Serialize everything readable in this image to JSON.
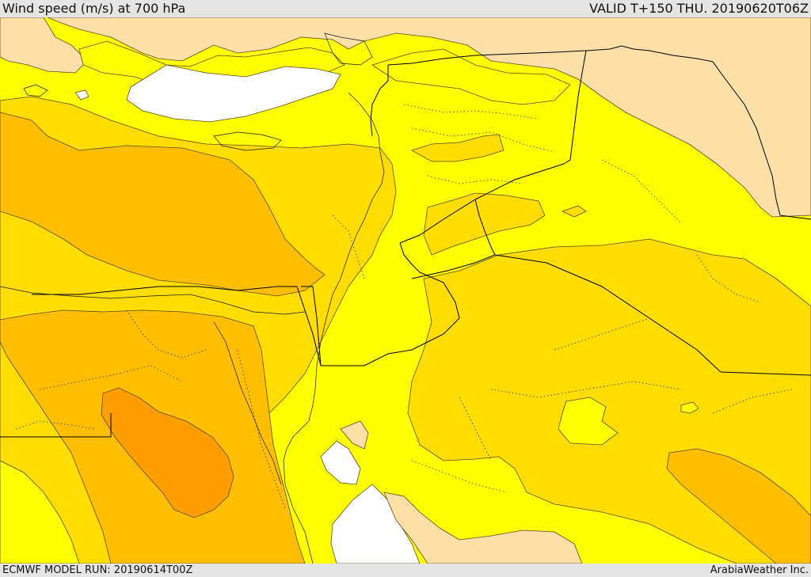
{
  "header": {
    "title": "Wind speed (m/s) at 700 hPa",
    "valid_time": "VALID T+150 THU. 20190620T06Z"
  },
  "footer": {
    "model_run": "ECMWF MODEL RUN: 20190614T00Z",
    "credit": "ArabiaWeather Inc."
  },
  "map": {
    "variable": "wind speed at 700 hPa",
    "units": "m/s",
    "fill_colors": {
      "calm_white": "#ffffff",
      "light_tan": "#fde0a8",
      "yellow": "#ffff00",
      "gold": "#ffdd00",
      "orange_gold": "#ffbf00",
      "dark_orange": "#ff9e00"
    },
    "line_colors": {
      "contour": "#5a4a20",
      "border": "#000000",
      "admin_dotted": "#333333"
    }
  }
}
